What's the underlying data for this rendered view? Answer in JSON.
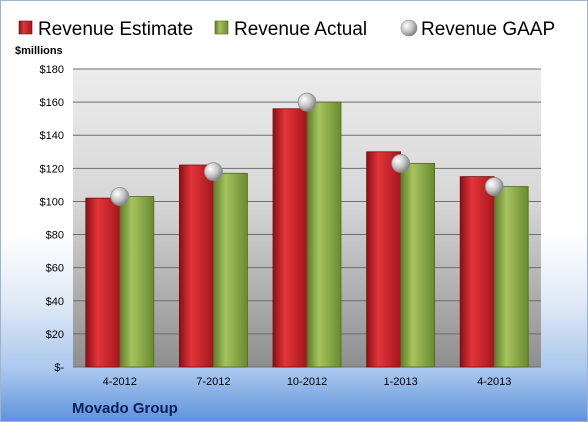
{
  "chart_data": {
    "type": "bar",
    "unit_label": "$millions",
    "categories": [
      "4-2012",
      "7-2012",
      "10-2012",
      "1-2013",
      "4-2013"
    ],
    "series": [
      {
        "name": "Revenue Estimate",
        "type": "bar",
        "color": "#cc2027",
        "values": [
          102,
          122,
          156,
          130,
          115
        ]
      },
      {
        "name": "Revenue Actual",
        "type": "bar",
        "color": "#8aab46",
        "values": [
          103,
          117,
          160,
          123,
          109
        ]
      },
      {
        "name": "Revenue GAAP",
        "type": "marker",
        "color": "#b9b9b9",
        "values": [
          103,
          118,
          160,
          123,
          109
        ]
      }
    ],
    "y_ticks": [
      "$-",
      "$20",
      "$40",
      "$60",
      "$80",
      "$100",
      "$120",
      "$140",
      "$160",
      "$180"
    ],
    "ylim": [
      0,
      180
    ],
    "grid": true,
    "legend_position": "top"
  },
  "footer": {
    "company": "Movado Group"
  }
}
